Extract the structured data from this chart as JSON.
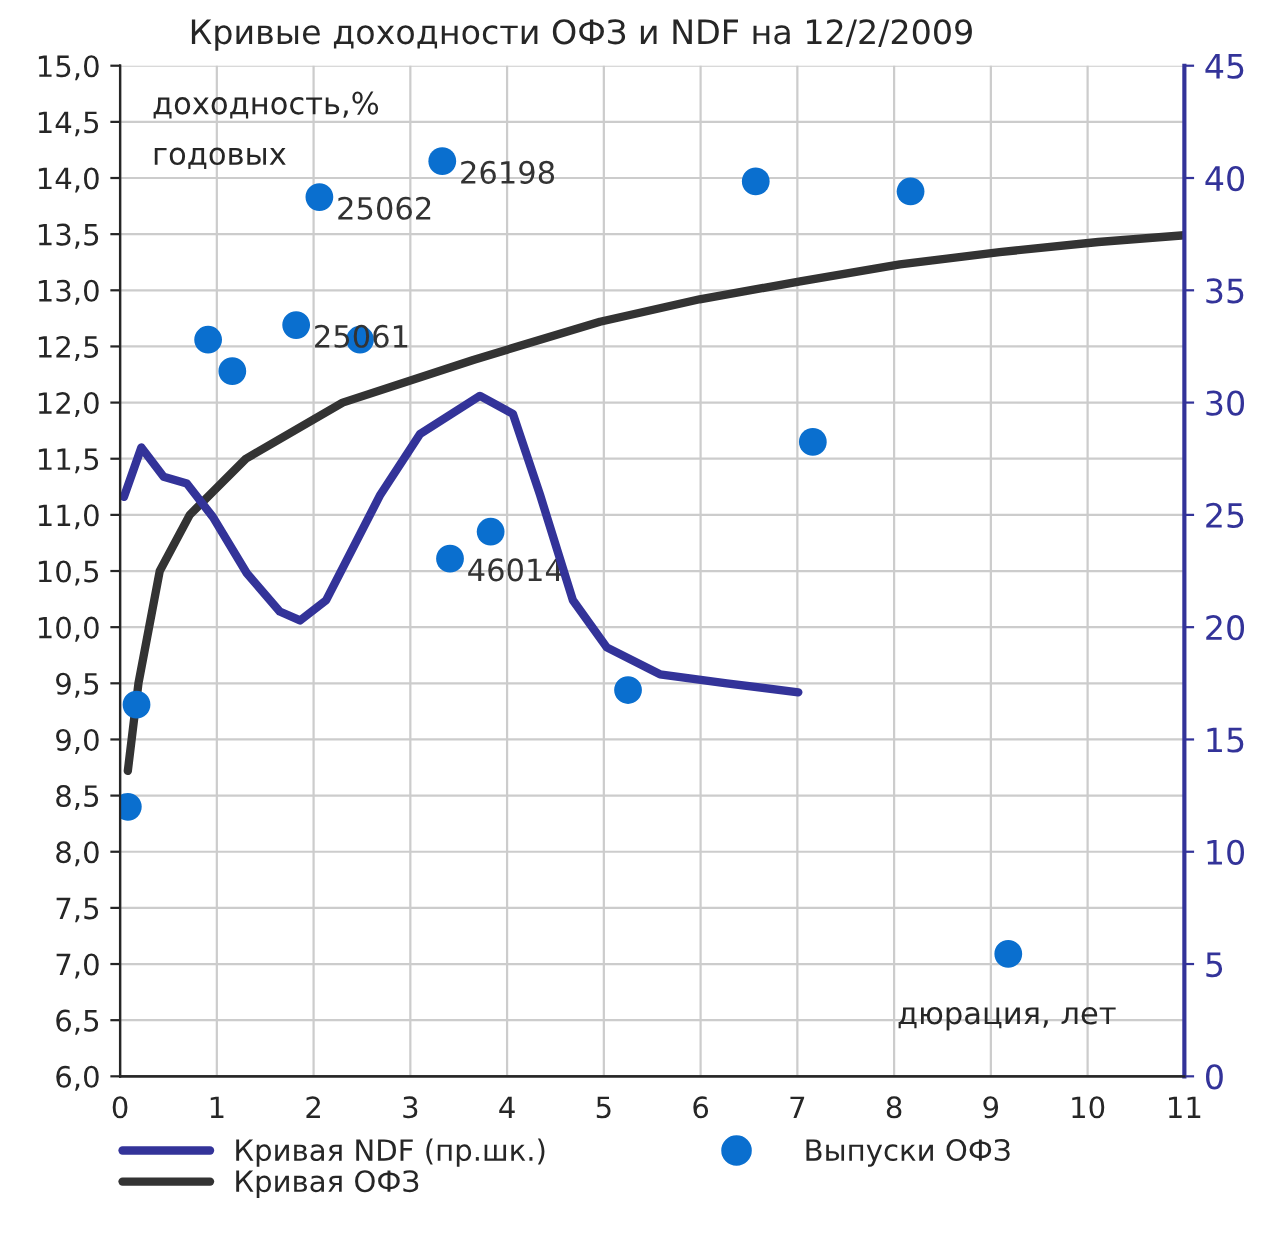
{
  "chart_data": {
    "type": "scatter",
    "title": "Кривые доходности ОФЗ и NDF на 12/2/2009",
    "ylabel": "доходность,%\nгодовых",
    "xlabel": "дюрация, лет",
    "xlim": [
      0,
      11
    ],
    "xticks": [
      0,
      1,
      2,
      3,
      4,
      5,
      6,
      7,
      8,
      9,
      10,
      11
    ],
    "ylim": [
      6,
      15
    ],
    "yticks": [
      {
        "value": 6,
        "label": "6,0"
      },
      {
        "value": 6.5,
        "label": "6,5"
      },
      {
        "value": 7,
        "label": "7,0"
      },
      {
        "value": 7.5,
        "label": "7,5"
      },
      {
        "value": 8,
        "label": "8,0"
      },
      {
        "value": 8.5,
        "label": "8,5"
      },
      {
        "value": 9,
        "label": "9,0"
      },
      {
        "value": 9.5,
        "label": "9,5"
      },
      {
        "value": 10,
        "label": "10,0"
      },
      {
        "value": 10.5,
        "label": "10,5"
      },
      {
        "value": 11,
        "label": "11,0"
      },
      {
        "value": 11.5,
        "label": "11,5"
      },
      {
        "value": 12,
        "label": "12,0"
      },
      {
        "value": 12.5,
        "label": "12,5"
      },
      {
        "value": 13,
        "label": "13,0"
      },
      {
        "value": 13.5,
        "label": "13,5"
      },
      {
        "value": 14,
        "label": "14,0"
      },
      {
        "value": 14.5,
        "label": "14,5"
      },
      {
        "value": 15,
        "label": "15,0"
      }
    ],
    "y2lim": [
      0,
      45
    ],
    "y2ticks": [
      0,
      5,
      10,
      15,
      20,
      25,
      30,
      35,
      40,
      45
    ],
    "grid": true,
    "legend": "bottom",
    "series": [
      {
        "name": "Кривая NDF (пр.шк.)",
        "type": "line",
        "axis": "y2",
        "color": "#333399",
        "x": [
          0.04,
          0.22,
          0.45,
          0.69,
          0.96,
          1.31,
          1.65,
          1.86,
          2.13,
          2.69,
          3.1,
          3.72,
          4.06,
          4.34,
          4.68,
          5.03,
          5.58,
          6.27,
          7.01
        ],
        "values": [
          25.8,
          28.0,
          26.7,
          26.4,
          24.9,
          22.4,
          20.7,
          20.3,
          21.2,
          25.9,
          28.6,
          30.3,
          29.5,
          25.9,
          21.2,
          19.1,
          17.9,
          17.5,
          17.1
        ]
      },
      {
        "name": "Выпуски ОФЗ",
        "color": "#0a6fcf",
        "marker": "circle",
        "x": [
          0.08,
          0.17,
          0.91,
          1.16,
          1.82,
          2.06,
          2.48,
          3.33,
          3.41,
          3.83,
          5.25,
          6.57,
          7.16,
          8.17,
          9.18
        ],
        "values": [
          8.4,
          9.31,
          12.56,
          12.28,
          12.69,
          13.83,
          12.56,
          14.15,
          10.61,
          10.85,
          9.44,
          13.97,
          11.65,
          13.88,
          7.09
        ]
      },
      {
        "name": "Кривая ОФЗ",
        "type": "line",
        "color": "#333333",
        "x": [
          0.08,
          0.19,
          0.41,
          0.72,
          1.3,
          2.3,
          3.65,
          4.96,
          5.99,
          7.03,
          8.06,
          9.09,
          10.11,
          11.0
        ],
        "values": [
          8.72,
          9.5,
          10.5,
          11.0,
          11.5,
          12.0,
          12.38,
          12.72,
          12.92,
          13.08,
          13.23,
          13.34,
          13.43,
          13.49
        ]
      }
    ],
    "annotations": [
      {
        "text": "25062",
        "x": 2.06,
        "y": 13.83
      },
      {
        "text": "26198",
        "x": 3.33,
        "y": 14.15
      },
      {
        "text": "25061",
        "x": 1.82,
        "y": 12.69
      },
      {
        "text": "46014",
        "x": 3.41,
        "y": 10.61
      }
    ]
  }
}
